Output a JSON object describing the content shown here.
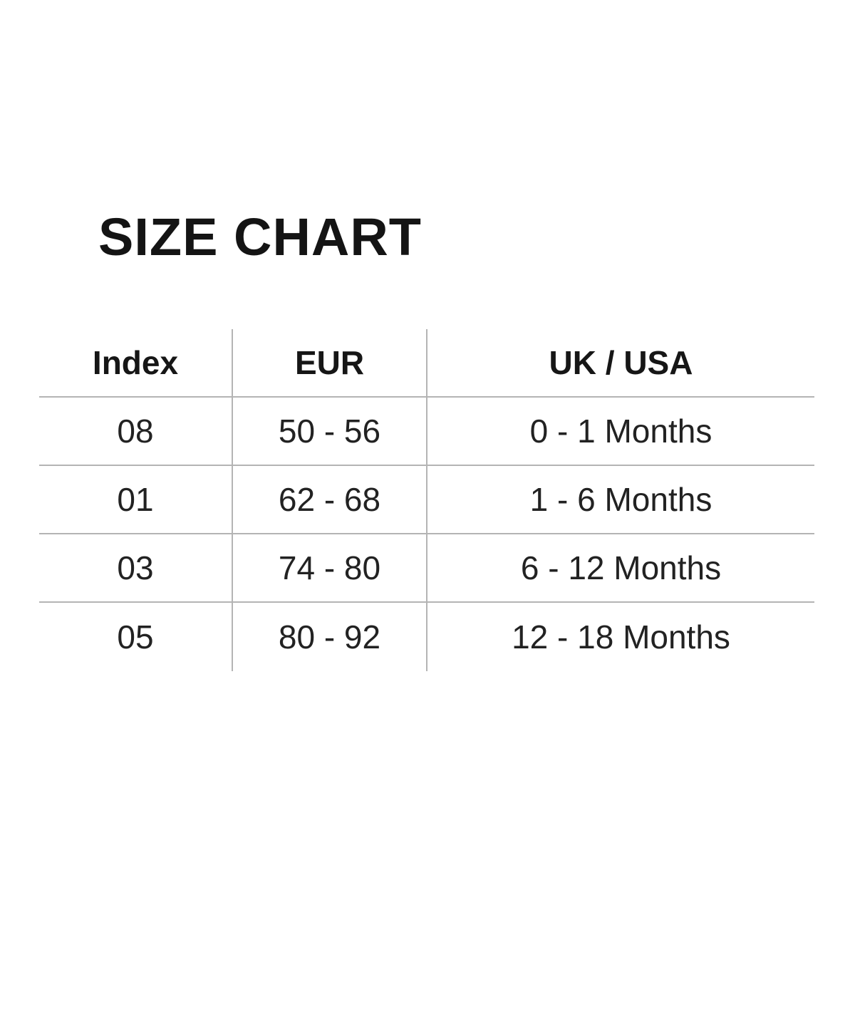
{
  "page": {
    "title": "SIZE CHART"
  },
  "chart_data": {
    "type": "table",
    "title": "SIZE CHART",
    "columns": [
      "Index",
      "EUR",
      "UK / USA"
    ],
    "rows": [
      [
        "08",
        "50 - 56",
        "0 - 1 Months"
      ],
      [
        "01",
        "62 - 68",
        "1 - 6 Months"
      ],
      [
        "03",
        "74 - 80",
        "6 - 12 Months"
      ],
      [
        "05",
        "80 - 92",
        "12 - 18 Months"
      ]
    ],
    "layout_hints": {
      "grid": "vertical dividers between all 3 columns; horizontal rules under header and rows 1-3; no outer border",
      "alignment": "all cells center-aligned"
    }
  },
  "colors": {
    "background": "#ffffff",
    "title_text": "#141414",
    "table_text": "#222222",
    "rule_line": "#b4b4b4"
  }
}
